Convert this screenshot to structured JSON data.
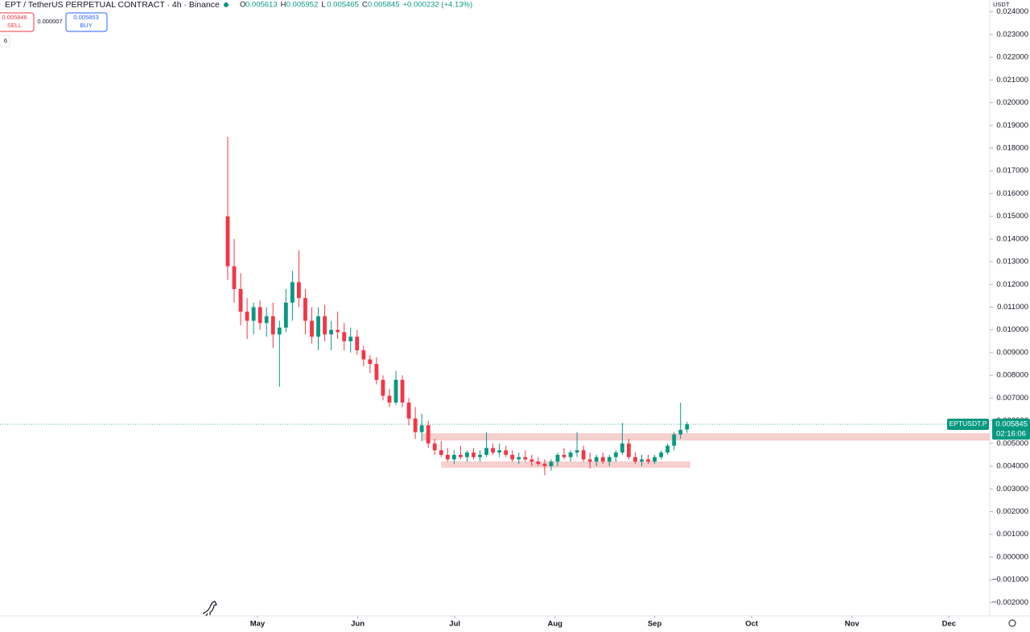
{
  "header": {
    "symbol": "EPT / TetherUS PERPETUAL CONTRACT · 4h · Binance",
    "ohlc_labels": [
      "O",
      "H",
      "L",
      "C"
    ],
    "change": "+0.000232 (+4.13%)",
    "sell_price": "0.005846",
    "sell_label": "SELL",
    "spread": "0.000007",
    "buy_price": "0.005853",
    "buy_label": "BUY",
    "indicator_count": "6",
    "currency": "USDT"
  },
  "price_tag": {
    "symbol": "EPTUSDT.P",
    "countdown": "02:16:06"
  },
  "chart_data": {
    "type": "candlestick",
    "up_color": "#089981",
    "down_color": "#f23645",
    "grid": false,
    "x": [
      0,
      1,
      2,
      3,
      4,
      5,
      6,
      7,
      8,
      9,
      10,
      11,
      12,
      13,
      14,
      15,
      16,
      17,
      18,
      19,
      20,
      21,
      22,
      23,
      24,
      25,
      26,
      27,
      28,
      29,
      30,
      31,
      32,
      33,
      34,
      35,
      36,
      37,
      38,
      39,
      40,
      41,
      42,
      43,
      44,
      45,
      46,
      47,
      48,
      49,
      50,
      51,
      52,
      53,
      54,
      55,
      56,
      57,
      58,
      59,
      60,
      61,
      62,
      63,
      64,
      65,
      66,
      67,
      68,
      69,
      70,
      71
    ],
    "open": [
      0.015,
      0.0128,
      0.0118,
      0.0108,
      0.0104,
      0.011,
      0.0103,
      0.0106,
      0.0098,
      0.0101,
      0.0112,
      0.0121,
      0.0114,
      0.0104,
      0.0097,
      0.0106,
      0.0098,
      0.01,
      0.0099,
      0.0095,
      0.0097,
      0.0091,
      0.0087,
      0.0085,
      0.0078,
      0.0071,
      0.0068,
      0.0078,
      0.0068,
      0.0061,
      0.0055,
      0.0058,
      0.005,
      0.0047,
      0.0045,
      0.0043,
      0.0045,
      0.0044,
      0.0046,
      0.0044,
      0.0045,
      0.0048,
      0.0046,
      0.0047,
      0.0045,
      0.0043,
      0.0044,
      0.0043,
      0.0042,
      0.0041,
      0.004,
      0.0042,
      0.0045,
      0.0044,
      0.0046,
      0.0047,
      0.0043,
      0.0042,
      0.0044,
      0.0042,
      0.0044,
      0.0046,
      0.005,
      0.0044,
      0.0042,
      0.0043,
      0.0042,
      0.0044,
      0.0046,
      0.0049,
      0.0054,
      0.005613
    ],
    "high": [
      0.0185,
      0.014,
      0.0125,
      0.0114,
      0.0112,
      0.0113,
      0.011,
      0.0112,
      0.0104,
      0.0118,
      0.0126,
      0.0135,
      0.0118,
      0.011,
      0.011,
      0.0111,
      0.0104,
      0.0108,
      0.0103,
      0.0101,
      0.01,
      0.0093,
      0.0089,
      0.0088,
      0.008,
      0.0074,
      0.0082,
      0.008,
      0.007,
      0.0066,
      0.0063,
      0.006,
      0.0052,
      0.0051,
      0.0048,
      0.0047,
      0.0049,
      0.0047,
      0.0048,
      0.0047,
      0.0055,
      0.005,
      0.005,
      0.0049,
      0.0047,
      0.0046,
      0.0047,
      0.0045,
      0.0044,
      0.0043,
      0.0043,
      0.0046,
      0.0048,
      0.0047,
      0.0055,
      0.0049,
      0.0046,
      0.0045,
      0.0046,
      0.0045,
      0.0047,
      0.0059,
      0.0052,
      0.0046,
      0.0045,
      0.0045,
      0.0045,
      0.0047,
      0.005,
      0.0055,
      0.0068,
      0.005952
    ],
    "low": [
      0.0122,
      0.0112,
      0.0102,
      0.0096,
      0.0098,
      0.01,
      0.0097,
      0.0092,
      0.0075,
      0.0099,
      0.0104,
      0.011,
      0.0098,
      0.0094,
      0.0091,
      0.0095,
      0.0091,
      0.0096,
      0.0091,
      0.009,
      0.0089,
      0.0084,
      0.0081,
      0.0076,
      0.0069,
      0.0066,
      0.0067,
      0.0066,
      0.0058,
      0.0052,
      0.0051,
      0.0048,
      0.0045,
      0.0044,
      0.0042,
      0.0041,
      0.0043,
      0.0042,
      0.0043,
      0.0042,
      0.0044,
      0.0045,
      0.0044,
      0.0044,
      0.0042,
      0.0041,
      0.0042,
      0.004,
      0.004,
      0.0036,
      0.0038,
      0.004,
      0.0043,
      0.0042,
      0.0044,
      0.0042,
      0.0039,
      0.004,
      0.0041,
      0.004,
      0.0042,
      0.0045,
      0.0043,
      0.0041,
      0.004,
      0.0041,
      0.0041,
      0.0043,
      0.0045,
      0.0047,
      0.0052,
      0.005465
    ],
    "close": [
      0.0128,
      0.0118,
      0.0108,
      0.0104,
      0.011,
      0.0103,
      0.0106,
      0.0098,
      0.0101,
      0.0112,
      0.0121,
      0.0114,
      0.0104,
      0.0097,
      0.0106,
      0.0098,
      0.01,
      0.0099,
      0.0095,
      0.0097,
      0.0091,
      0.0087,
      0.0085,
      0.0078,
      0.0071,
      0.0068,
      0.0078,
      0.0068,
      0.0061,
      0.0055,
      0.0058,
      0.005,
      0.0047,
      0.0045,
      0.0043,
      0.0045,
      0.0044,
      0.0046,
      0.0044,
      0.0045,
      0.0048,
      0.0046,
      0.0047,
      0.0045,
      0.0043,
      0.0044,
      0.0043,
      0.0042,
      0.0041,
      0.004,
      0.0042,
      0.0045,
      0.0044,
      0.0046,
      0.0047,
      0.0043,
      0.0042,
      0.0044,
      0.0042,
      0.0044,
      0.0046,
      0.005,
      0.0044,
      0.0042,
      0.0043,
      0.0042,
      0.0044,
      0.0046,
      0.0049,
      0.0054,
      0.0056,
      0.005845
    ],
    "zones": [
      {
        "x0": 30.1,
        "extend_right": true,
        "y0": 0.00513,
        "y1": 0.00545
      },
      {
        "x0": 33.0,
        "x1": 71.5,
        "y0": 0.00393,
        "y1": 0.00421
      }
    ],
    "zone_color": "#f4c7c7",
    "xlim": [
      -35.2,
      117.8
    ],
    "xticks": [
      {
        "value": 4.6,
        "label": "May"
      },
      {
        "value": 20.1,
        "label": "Jun"
      },
      {
        "value": 35.1,
        "label": "Jul"
      },
      {
        "value": 50.6,
        "label": "Aug"
      },
      {
        "value": 66.0,
        "label": "Sep"
      },
      {
        "value": 81.0,
        "label": "Oct"
      },
      {
        "value": 96.5,
        "label": "Nov"
      },
      {
        "value": 111.5,
        "label": "Dec"
      }
    ],
    "ylim": [
      -0.00259,
      0.02452
    ],
    "yticks": [
      {
        "value": -0.002,
        "label": "−0.002000"
      },
      {
        "value": -0.001,
        "label": "−0.001000"
      },
      {
        "value": 0,
        "label": "0.000000"
      },
      {
        "value": 0.001,
        "label": "0.001000"
      },
      {
        "value": 0.002,
        "label": "0.002000"
      },
      {
        "value": 0.003,
        "label": "0.003000"
      },
      {
        "value": 0.004,
        "label": "0.004000"
      },
      {
        "value": 0.005,
        "label": "0.005000"
      },
      {
        "value": 0.006,
        "label": "0.006000"
      },
      {
        "value": 0.007,
        "label": "0.007000"
      },
      {
        "value": 0.008,
        "label": "0.008000"
      },
      {
        "value": 0.009,
        "label": "0.009000"
      },
      {
        "value": 0.01,
        "label": "0.010000"
      },
      {
        "value": 0.011,
        "label": "0.011000"
      },
      {
        "value": 0.012,
        "label": "0.012000"
      },
      {
        "value": 0.013,
        "label": "0.013000"
      },
      {
        "value": 0.014,
        "label": "0.014000"
      },
      {
        "value": 0.015,
        "label": "0.015000"
      },
      {
        "value": 0.016,
        "label": "0.016000"
      },
      {
        "value": 0.017,
        "label": "0.017000"
      },
      {
        "value": 0.018,
        "label": "0.018000"
      },
      {
        "value": 0.019,
        "label": "0.019000"
      },
      {
        "value": 0.02,
        "label": "0.020000"
      },
      {
        "value": 0.021,
        "label": "0.021000"
      },
      {
        "value": 0.022,
        "label": "0.022000"
      },
      {
        "value": 0.023,
        "label": "0.023000"
      },
      {
        "value": 0.024,
        "label": "0.024000"
      }
    ]
  }
}
